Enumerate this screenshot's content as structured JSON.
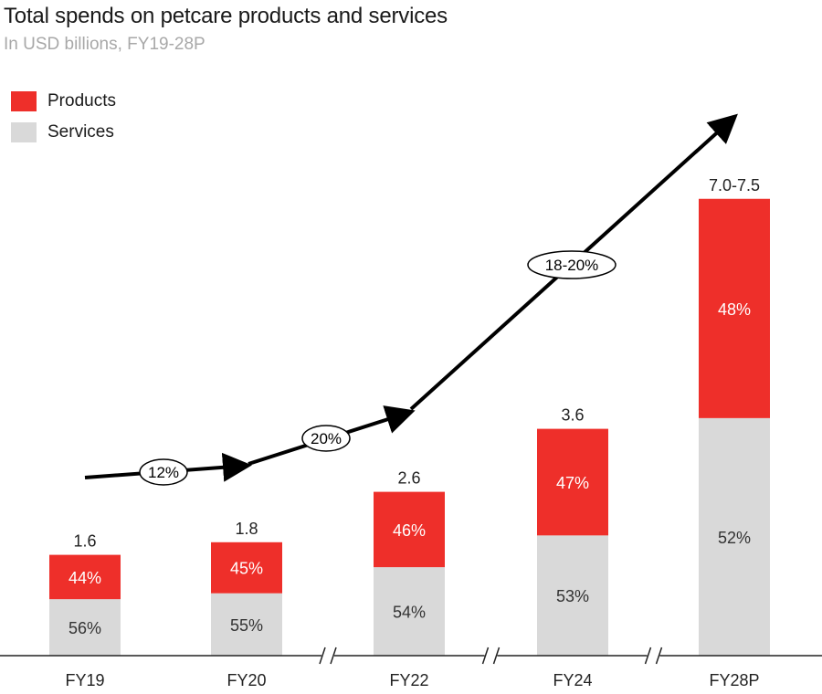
{
  "chart_data": {
    "type": "bar",
    "stacked": true,
    "title": "Total spends on petcare products and services",
    "subtitle": "In USD billions, FY19-28P",
    "categories": [
      "FY19",
      "FY20",
      "FY22",
      "FY24",
      "FY28P"
    ],
    "totals": [
      1.6,
      1.8,
      2.6,
      3.6,
      7.25
    ],
    "total_labels": [
      "1.6",
      "1.8",
      "2.6",
      "3.6",
      "7.0-7.5"
    ],
    "series": [
      {
        "name": "Services",
        "color": "#d9d9d9",
        "share_labels": [
          "56%",
          "55%",
          "54%",
          "53%",
          "52%"
        ],
        "shares": [
          56,
          55,
          54,
          53,
          52
        ]
      },
      {
        "name": "Products",
        "color": "#ee2f2a",
        "share_labels": [
          "44%",
          "45%",
          "46%",
          "47%",
          "48%"
        ],
        "shares": [
          44,
          45,
          46,
          47,
          48
        ]
      }
    ],
    "growth_labels": [
      "12%",
      "20%",
      "18-20%"
    ],
    "ylim": [
      0,
      7.5
    ],
    "axis_breaks_after": [
      "FY20",
      "FY22",
      "FY24"
    ],
    "legend": {
      "position": "top-left",
      "items": [
        "Products",
        "Services"
      ]
    }
  }
}
